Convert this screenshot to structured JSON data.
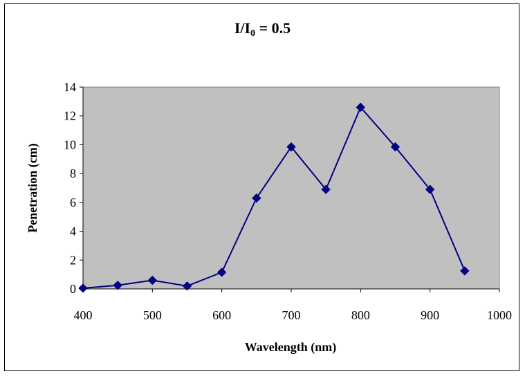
{
  "chart_data": {
    "type": "line",
    "title_main": "I/I",
    "title_sub": "0",
    "title_tail": " = 0.5",
    "xlabel": "Wavelength (nm)",
    "ylabel": "Penetration (cm)",
    "xlim": [
      400,
      1000
    ],
    "ylim": [
      0,
      14
    ],
    "x_ticks": [
      400,
      500,
      600,
      700,
      800,
      900,
      1000
    ],
    "y_ticks": [
      0,
      2,
      4,
      6,
      8,
      10,
      12,
      14
    ],
    "plot_background": "#c0c0c0",
    "series": [
      {
        "color": "#000080",
        "x": [
          400,
          450,
          500,
          550,
          600,
          650,
          700,
          750,
          800,
          850,
          900,
          950
        ],
        "y": [
          0.05,
          0.25,
          0.6,
          0.2,
          1.15,
          6.3,
          9.85,
          6.9,
          12.6,
          9.85,
          6.9,
          1.25
        ]
      }
    ],
    "grid": false,
    "legend": "none"
  }
}
